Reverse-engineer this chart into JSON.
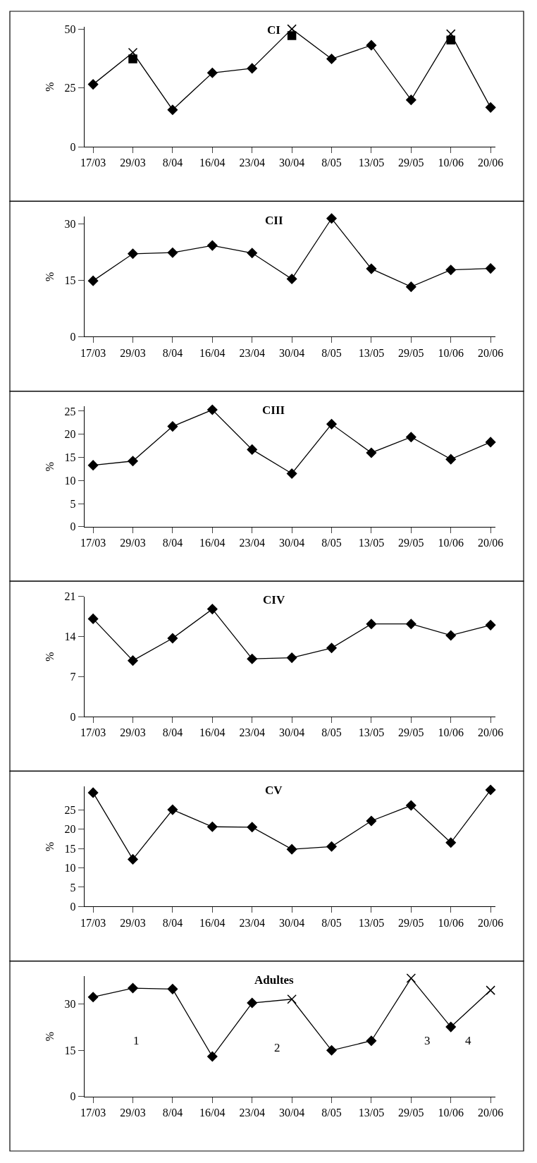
{
  "chart_data": [
    {
      "type": "line",
      "title": "CI",
      "ylabel": "%",
      "categories": [
        "17/03",
        "29/03",
        "8/04",
        "16/04",
        "23/04",
        "30/04",
        "8/05",
        "13/05",
        "29/05",
        "10/06",
        "20/06"
      ],
      "ylim": [
        0,
        51
      ],
      "yticks": [
        0,
        25,
        50
      ],
      "series": [
        {
          "marker": "none",
          "color": "#000000",
          "values": [
            26.5,
            40,
            15.7,
            31.4,
            33.3,
            50,
            37.3,
            43.1,
            19.9,
            47.9,
            16.7
          ]
        },
        {
          "type": "scatter",
          "marker": "diamond",
          "color": "#000000",
          "values": [
            26.5,
            null,
            15.7,
            31.4,
            33.3,
            null,
            37.3,
            43.1,
            19.9,
            null,
            16.7
          ]
        },
        {
          "type": "scatter",
          "marker": "cross",
          "color": "#000000",
          "values": [
            null,
            40,
            null,
            null,
            null,
            50,
            null,
            null,
            null,
            47.9,
            null
          ]
        },
        {
          "type": "scatter",
          "marker": "square",
          "color": "#000000",
          "values": [
            null,
            37.3,
            null,
            null,
            null,
            47.2,
            null,
            null,
            null,
            45.3,
            null
          ]
        }
      ]
    },
    {
      "type": "line",
      "title": "CII",
      "ylabel": "%",
      "categories": [
        "17/03",
        "29/03",
        "8/04",
        "16/04",
        "23/04",
        "30/04",
        "8/05",
        "13/05",
        "29/05",
        "10/06",
        "20/06"
      ],
      "ylim": [
        0,
        32
      ],
      "yticks": [
        0,
        15,
        30
      ],
      "series": [
        {
          "marker": "diamond",
          "color": "#000000",
          "values": [
            14.9,
            22.1,
            22.4,
            24.3,
            22.3,
            15.4,
            31.5,
            18.1,
            13.3,
            17.8,
            18.2
          ]
        }
      ]
    },
    {
      "type": "line",
      "title": "CIII",
      "ylabel": "%",
      "categories": [
        "17/03",
        "29/03",
        "8/04",
        "16/04",
        "23/04",
        "30/04",
        "8/05",
        "13/05",
        "29/05",
        "10/06",
        "20/06"
      ],
      "ylim": [
        0,
        26
      ],
      "yticks": [
        0,
        5,
        10,
        15,
        20,
        25
      ],
      "series": [
        {
          "marker": "diamond",
          "color": "#000000",
          "values": [
            13.3,
            14.2,
            21.7,
            25.3,
            16.7,
            11.5,
            22.2,
            16.0,
            19.4,
            14.6,
            18.3
          ]
        }
      ]
    },
    {
      "type": "line",
      "title": "CIV",
      "ylabel": "%",
      "categories": [
        "17/03",
        "29/03",
        "8/04",
        "16/04",
        "23/04",
        "30/04",
        "8/05",
        "13/05",
        "29/05",
        "10/06",
        "20/06"
      ],
      "ylim": [
        0,
        21
      ],
      "yticks": [
        0,
        7,
        14,
        21
      ],
      "series": [
        {
          "marker": "diamond",
          "color": "#000000",
          "values": [
            17.1,
            9.8,
            13.7,
            18.8,
            10.1,
            10.3,
            12.0,
            16.2,
            16.2,
            14.2,
            16.0
          ]
        }
      ]
    },
    {
      "type": "line",
      "title": "CV",
      "ylabel": "%",
      "categories": [
        "17/03",
        "29/03",
        "8/04",
        "16/04",
        "23/04",
        "30/04",
        "8/05",
        "13/05",
        "29/05",
        "10/06",
        "20/06"
      ],
      "ylim": [
        0,
        31
      ],
      "yticks": [
        0,
        5,
        10,
        15,
        20,
        25
      ],
      "series": [
        {
          "marker": "diamond",
          "color": "#000000",
          "values": [
            29.4,
            12.2,
            25.0,
            20.6,
            20.5,
            14.8,
            15.5,
            22.1,
            26.1,
            16.5,
            30.1
          ]
        }
      ]
    },
    {
      "type": "line",
      "title": "Adultes",
      "ylabel": "%",
      "categories": [
        "17/03",
        "29/03",
        "8/04",
        "16/04",
        "23/04",
        "30/04",
        "8/05",
        "13/05",
        "29/05",
        "10/06",
        "20/06"
      ],
      "ylim": [
        0,
        39
      ],
      "yticks": [
        0,
        15,
        30
      ],
      "annotations": [
        "1",
        "2",
        "3",
        "4"
      ],
      "series": [
        {
          "marker": "none",
          "color": "#000000",
          "values": [
            32.3,
            35.2,
            34.9,
            13.0,
            30.4,
            31.6,
            15.0,
            18.1,
            38.4,
            22.6,
            34.5
          ]
        },
        {
          "type": "scatter",
          "marker": "diamond",
          "color": "#000000",
          "values": [
            32.3,
            35.2,
            34.9,
            13.0,
            30.4,
            null,
            15.0,
            18.1,
            null,
            22.6,
            null
          ]
        },
        {
          "type": "scatter",
          "marker": "cross",
          "color": "#000000",
          "values": [
            null,
            null,
            null,
            null,
            null,
            31.6,
            null,
            null,
            38.4,
            null,
            34.5
          ]
        }
      ]
    }
  ]
}
